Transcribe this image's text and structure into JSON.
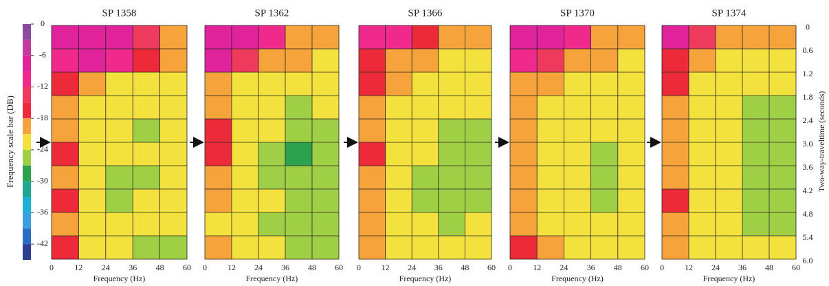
{
  "chart_data": {
    "type": "heatmap",
    "colorbar": {
      "label": "Frequency scale bar (DB)",
      "clim": [
        0,
        -45
      ],
      "ticks": [
        0,
        -6,
        -12,
        -18,
        -24,
        -30,
        -36,
        -42
      ],
      "levels": [
        0,
        -3,
        -6,
        -9,
        -12,
        -15,
        -18,
        -21,
        -24,
        -27,
        -30,
        -33,
        -36,
        -39,
        -42,
        -45
      ],
      "colors": [
        "#8a4c9e",
        "#c33a9e",
        "#e0239a",
        "#ef2a8c",
        "#ee3a5c",
        "#ec2a3a",
        "#f6a33c",
        "#f3e13e",
        "#9fcf45",
        "#2ca24f",
        "#1fa88f",
        "#1ab0d8",
        "#3a9fe0",
        "#2a6cc4",
        "#2c3f93"
      ]
    },
    "y_axis": {
      "label": "Two-way-traveltime (seconds)",
      "ylim": [
        0,
        6
      ],
      "yticks": [
        0,
        0.6,
        1.2,
        1.8,
        2.4,
        {
          "value": 3,
          "label": "3.0"
        },
        3.6,
        4.2,
        4.8,
        5.4,
        {
          "value": 6,
          "label": "6.0"
        }
      ]
    },
    "marked_time": 3,
    "panels": [
      {
        "title": "SP 1358",
        "xlabel": "Frequency (Hz)",
        "xlim": [
          0,
          60
        ],
        "xticks": [
          0,
          12,
          24,
          36,
          48,
          60
        ],
        "values": [
          [
            -6,
            -6,
            -8,
            -12,
            -18
          ],
          [
            -9,
            -8,
            -10,
            -17,
            -20
          ],
          [
            -16,
            -19,
            -21,
            -21,
            -21
          ],
          [
            -18,
            -21,
            -22,
            -22,
            -21
          ],
          [
            -18,
            -21,
            -23,
            -25,
            -22
          ],
          [
            -16,
            -21,
            -23,
            -23,
            -22
          ],
          [
            -19,
            -22,
            -24,
            -25,
            -23
          ],
          [
            -17,
            -22,
            -24,
            -23,
            -22
          ],
          [
            -18,
            -21,
            -22,
            -23,
            -22
          ],
          [
            -15,
            -21,
            -23,
            -25,
            -24
          ]
        ]
      },
      {
        "title": "SP 1362",
        "xlabel": "Frequency (Hz)",
        "xlim": [
          0,
          60
        ],
        "xticks": [
          0,
          12,
          24,
          36,
          48,
          60
        ],
        "values": [
          [
            -6,
            -7,
            -10,
            -18,
            -20
          ],
          [
            -8,
            -12,
            -18,
            -20,
            -21
          ],
          [
            -19,
            -21,
            -22,
            -23,
            -22
          ],
          [
            -20,
            -22,
            -23,
            -24,
            -23
          ],
          [
            -16,
            -21,
            -23,
            -25,
            -24
          ],
          [
            -17,
            -22,
            -25,
            -27,
            -26
          ],
          [
            -19,
            -22,
            -24,
            -26,
            -25
          ],
          [
            -20,
            -22,
            -23,
            -24,
            -24
          ],
          [
            -21,
            -22,
            -24,
            -25,
            -24
          ],
          [
            -20,
            -21,
            -23,
            -25,
            -24
          ]
        ]
      },
      {
        "title": "SP 1366",
        "xlabel": "Frequency (Hz)",
        "xlim": [
          0,
          60
        ],
        "xticks": [
          0,
          12,
          24,
          36,
          48,
          60
        ],
        "values": [
          [
            -9,
            -10,
            -16,
            -19,
            -20
          ],
          [
            -17,
            -19,
            -20,
            -21,
            -21
          ],
          [
            -15,
            -20,
            -21,
            -22,
            -22
          ],
          [
            -18,
            -21,
            -22,
            -23,
            -22
          ],
          [
            -19,
            -21,
            -22,
            -24,
            -25
          ],
          [
            -16,
            -21,
            -23,
            -25,
            -24
          ],
          [
            -18,
            -21,
            -24,
            -26,
            -25
          ],
          [
            -19,
            -22,
            -25,
            -26,
            -24
          ],
          [
            -19,
            -21,
            -23,
            -24,
            -23
          ],
          [
            -20,
            -21,
            -22,
            -23,
            -23
          ]
        ]
      },
      {
        "title": "SP 1370",
        "xlabel": "Frequency (Hz)",
        "xlim": [
          0,
          60
        ],
        "xticks": [
          0,
          12,
          24,
          36,
          48,
          60
        ],
        "values": [
          [
            -7,
            -8,
            -10,
            -18,
            -20
          ],
          [
            -9,
            -14,
            -19,
            -20,
            -21
          ],
          [
            -18,
            -20,
            -21,
            -22,
            -22
          ],
          [
            -19,
            -21,
            -22,
            -23,
            -22
          ],
          [
            -19,
            -21,
            -22,
            -23,
            -23
          ],
          [
            -18,
            -21,
            -22,
            -24,
            -23
          ],
          [
            -19,
            -21,
            -23,
            -24,
            -23
          ],
          [
            -19,
            -21,
            -23,
            -25,
            -23
          ],
          [
            -19,
            -21,
            -22,
            -23,
            -22
          ],
          [
            -17,
            -20,
            -22,
            -23,
            -23
          ]
        ]
      },
      {
        "title": "SP 1374",
        "xlabel": "Frequency (Hz)",
        "xlim": [
          0,
          60
        ],
        "xticks": [
          0,
          12,
          24,
          36,
          48,
          60
        ],
        "values": [
          [
            -8,
            -12,
            -18,
            -20,
            -20
          ],
          [
            -17,
            -20,
            -21,
            -21,
            -21
          ],
          [
            -16,
            -21,
            -22,
            -23,
            -22
          ],
          [
            -19,
            -21,
            -23,
            -24,
            -25
          ],
          [
            -18,
            -21,
            -22,
            -24,
            -24
          ],
          [
            -19,
            -21,
            -23,
            -25,
            -25
          ],
          [
            -18,
            -21,
            -23,
            -25,
            -24
          ],
          [
            -17,
            -21,
            -22,
            -24,
            -24
          ],
          [
            -19,
            -21,
            -23,
            -24,
            -24
          ],
          [
            -18,
            -21,
            -22,
            -23,
            -23
          ]
        ]
      }
    ]
  }
}
